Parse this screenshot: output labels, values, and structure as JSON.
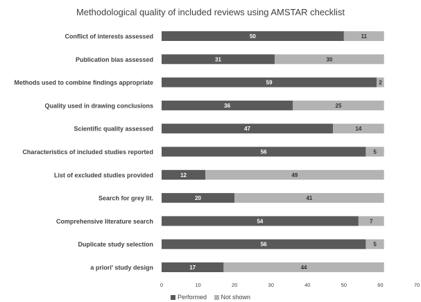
{
  "colors": {
    "performed": "#5a5a5a",
    "not_shown": "#b3b3b3",
    "text": "#404040",
    "grid": "#d9d9d9"
  },
  "chart_data": {
    "type": "bar",
    "orientation": "horizontal",
    "stacked": true,
    "title": "Methodological quality of included reviews using AMSTAR checklist",
    "categories": [
      "Conflict of interests assessed",
      "Publication bias assessed",
      "Methods used to combine findings appropriate",
      "Quality used in drawing conclusions",
      "Scientific quality assessed",
      "Characteristics of included studies reported",
      "List of excluded studies provided",
      "Search for grey lit.",
      "Comprehensive literature search",
      "Duplicate study selection",
      "a priori' study design"
    ],
    "series": [
      {
        "name": "Performed",
        "values": [
          50,
          31,
          59,
          36,
          47,
          56,
          12,
          20,
          54,
          56,
          17
        ]
      },
      {
        "name": "Not shown",
        "values": [
          11,
          30,
          2,
          25,
          14,
          5,
          49,
          41,
          7,
          5,
          44
        ]
      }
    ],
    "xlim": [
      0,
      70
    ],
    "xticks": [
      0,
      10,
      20,
      30,
      40,
      50,
      60,
      70
    ],
    "grid": false,
    "legend_position": "bottom"
  }
}
